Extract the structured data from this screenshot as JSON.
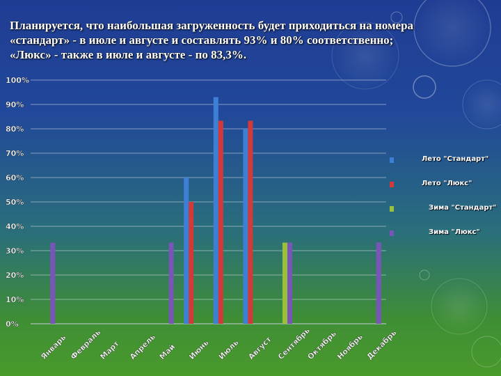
{
  "headline": {
    "line1": "Планируется, что наибольшая загруженность будет приходиться на номера",
    "line2": "«стандарт» - в июле и августе и составлять 93% и 80% соответственно;",
    "line3": "«Люкс» - также в июле и августе - по 83,3%."
  },
  "chart_data": {
    "type": "bar",
    "categories": [
      "Январь",
      "Февраль",
      "Март",
      "Апрель",
      "Май",
      "Июнь",
      "Июль",
      "Август",
      "Сентябрь",
      "Октябрь",
      "Ноябрь",
      "Декабрь"
    ],
    "series": [
      {
        "name": "Лето \"Стандарт\"",
        "color": "#3e7fd6",
        "values": [
          null,
          null,
          null,
          null,
          null,
          60,
          93,
          80,
          null,
          null,
          null,
          null
        ]
      },
      {
        "name": "Лето \"Люкс\"",
        "color": "#d23a3a",
        "values": [
          null,
          null,
          null,
          null,
          null,
          50,
          83.3,
          83.3,
          null,
          null,
          null,
          null
        ]
      },
      {
        "name": "Зима \"Стандарт\"",
        "color": "#9bc13c",
        "values": [
          null,
          null,
          null,
          null,
          null,
          null,
          null,
          null,
          33.3,
          null,
          null,
          null
        ]
      },
      {
        "name": "Зима \"Люкс\"",
        "color": "#7a55b8",
        "values": [
          33.3,
          null,
          null,
          null,
          33.3,
          null,
          null,
          null,
          33.3,
          null,
          null,
          33.3
        ]
      }
    ],
    "ylim": [
      0,
      100
    ],
    "yticks": [
      "0%",
      "10%",
      "20%",
      "30%",
      "40%",
      "50%",
      "60%",
      "70%",
      "80%",
      "90%",
      "100%"
    ],
    "grid": true,
    "legend_position": "right"
  }
}
